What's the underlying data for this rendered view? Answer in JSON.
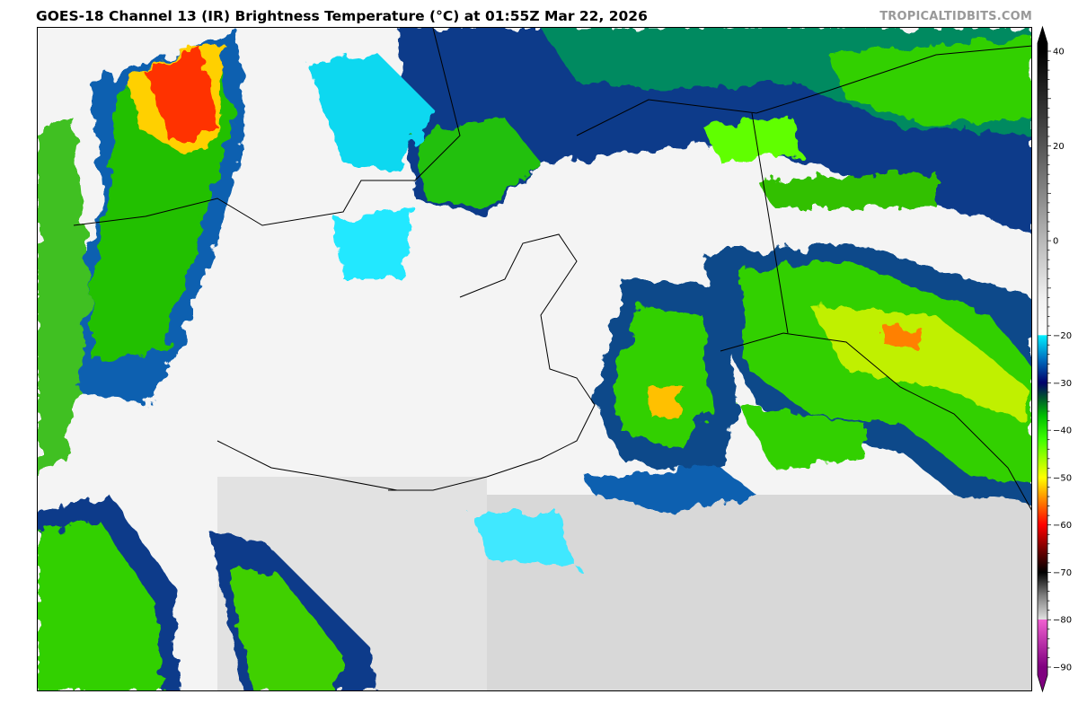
{
  "title": "GOES-18 Channel 13 (IR) Brightness Temperature (°C) at 01:55Z Mar 22, 2026",
  "brand": "TROPICALTIDBITS.COM",
  "colorbar": {
    "unit": "°C",
    "range": [
      -90,
      40
    ],
    "extend": "both",
    "tick_labels": [
      "40",
      "20",
      "0",
      "−20",
      "−30",
      "−40",
      "−50",
      "−60",
      "−70",
      "−80",
      "−90"
    ],
    "tick_values": [
      40,
      20,
      0,
      -20,
      -30,
      -40,
      -50,
      -60,
      -70,
      -80,
      -90
    ],
    "stops": [
      {
        "t": 40,
        "color": "#000000"
      },
      {
        "t": 20,
        "color": "#555555"
      },
      {
        "t": 0,
        "color": "#b8b8b8"
      },
      {
        "t": -12,
        "color": "#f0f0f0"
      },
      {
        "t": -19.9,
        "color": "#ffffff"
      },
      {
        "t": -20,
        "color": "#00f0ff"
      },
      {
        "t": -25,
        "color": "#0070c0"
      },
      {
        "t": -30,
        "color": "#00006a"
      },
      {
        "t": -33,
        "color": "#005030"
      },
      {
        "t": -37,
        "color": "#00c000"
      },
      {
        "t": -42,
        "color": "#40ff00"
      },
      {
        "t": -50,
        "color": "#ffff00"
      },
      {
        "t": -55,
        "color": "#ff8000"
      },
      {
        "t": -60,
        "color": "#ff0000"
      },
      {
        "t": -66,
        "color": "#600000"
      },
      {
        "t": -70,
        "color": "#000000"
      },
      {
        "t": -75,
        "color": "#808080"
      },
      {
        "t": -79.9,
        "color": "#e0e0e0"
      },
      {
        "t": -80,
        "color": "#f060d0"
      },
      {
        "t": -90,
        "color": "#800080"
      }
    ]
  }
}
